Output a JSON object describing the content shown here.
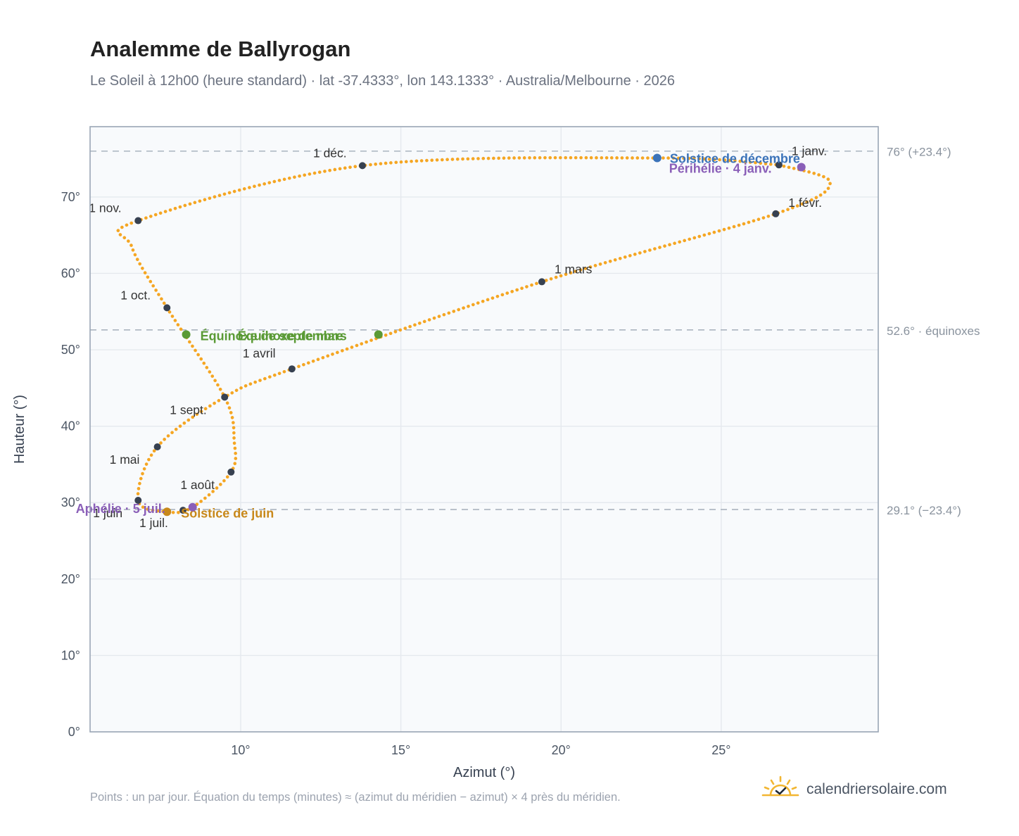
{
  "title": "Analemme de Ballyrogan",
  "subtitle": "Le Soleil à 12h00 (heure standard) · lat -37.4333°, lon 143.1333° · Australia/Melbourne · 2026",
  "footnote": "Points : un par jour. Équation du temps (minutes) ≈ (azimut du méridien − azimut) × 4 près du méridien.",
  "brand": {
    "name": "calendriersolaire.com",
    "icon": "sun-icon"
  },
  "colors": {
    "curve": "#f5a623",
    "month_marker": "#374151",
    "solstice_dec": "#3b73b9",
    "solstice_jun": "#c8881a",
    "equinox": "#5a9a35",
    "apsis": "#8a5fb8",
    "plot_bg": "#f8fafc",
    "grid": "#e5e9ee",
    "frame": "#9aa6b5"
  },
  "chart_data": {
    "type": "scatter",
    "xlabel": "Azimut (°)",
    "ylabel": "Hauteur (°)",
    "xlim": [
      5.3,
      29.9
    ],
    "ylim": [
      0,
      79.2
    ],
    "xticks": [
      {
        "value": 10,
        "label": "10°"
      },
      {
        "value": 15,
        "label": "15°"
      },
      {
        "value": 20,
        "label": "20°"
      },
      {
        "value": 25,
        "label": "25°"
      }
    ],
    "yticks": [
      {
        "value": 0,
        "label": "0°"
      },
      {
        "value": 10,
        "label": "10°"
      },
      {
        "value": 20,
        "label": "20°"
      },
      {
        "value": 30,
        "label": "30°"
      },
      {
        "value": 40,
        "label": "40°"
      },
      {
        "value": 50,
        "label": "50°"
      },
      {
        "value": 60,
        "label": "60°"
      },
      {
        "value": 70,
        "label": "70°"
      }
    ],
    "grid": true,
    "reference_lines": [
      {
        "value": 76.0,
        "label": "76° (+23.4°)"
      },
      {
        "value": 52.6,
        "label": "52.6° · équinoxes"
      },
      {
        "value": 29.1,
        "label": "29.1° (−23.4°)"
      }
    ],
    "analemma_path": [
      {
        "x": 26.8,
        "y": 74.2
      },
      {
        "x": 28.4,
        "y": 71.9
      },
      {
        "x": 26.7,
        "y": 67.8
      },
      {
        "x": 19.4,
        "y": 58.9
      },
      {
        "x": 11.6,
        "y": 47.5
      },
      {
        "x": 9.5,
        "y": 43.8
      },
      {
        "x": 7.4,
        "y": 37.3
      },
      {
        "x": 6.8,
        "y": 30.3
      },
      {
        "x": 7.7,
        "y": 28.8
      },
      {
        "x": 8.5,
        "y": 29.4
      },
      {
        "x": 9.7,
        "y": 34.0
      },
      {
        "x": 9.8,
        "y": 38.0
      },
      {
        "x": 9.5,
        "y": 43.8
      },
      {
        "x": 7.7,
        "y": 55.5
      },
      {
        "x": 6.6,
        "y": 63.5
      },
      {
        "x": 6.8,
        "y": 66.9
      },
      {
        "x": 13.8,
        "y": 74.1
      },
      {
        "x": 23.0,
        "y": 75.1
      },
      {
        "x": 26.8,
        "y": 74.2
      }
    ],
    "month_markers": [
      {
        "label": "1 janv.",
        "x": 26.8,
        "y": 74.2
      },
      {
        "label": "1 févr.",
        "x": 26.7,
        "y": 67.8
      },
      {
        "label": "1 mars",
        "x": 19.4,
        "y": 58.9
      },
      {
        "label": "1 avril",
        "x": 11.6,
        "y": 47.5
      },
      {
        "label": "1 mai",
        "x": 7.4,
        "y": 37.3
      },
      {
        "label": "1 juin",
        "x": 6.8,
        "y": 30.3
      },
      {
        "label": "1 juil.",
        "x": 8.2,
        "y": 29.0
      },
      {
        "label": "1 août",
        "x": 9.7,
        "y": 34.0
      },
      {
        "label": "1 sept.",
        "x": 9.5,
        "y": 43.8
      },
      {
        "label": "1 oct.",
        "x": 7.7,
        "y": 55.5
      },
      {
        "label": "1 nov.",
        "x": 6.8,
        "y": 66.9
      },
      {
        "label": "1 déc.",
        "x": 13.8,
        "y": 74.1
      }
    ],
    "events": [
      {
        "label": "Solstice de décembre",
        "x": 23.0,
        "y": 75.1,
        "kind": "solstice_dec"
      },
      {
        "label": "Périhélie · 4 janv.",
        "x": 27.5,
        "y": 73.9,
        "kind": "apsis"
      },
      {
        "label": "Équinoxe de mars",
        "x": 14.3,
        "y": 52.0,
        "kind": "equinox"
      },
      {
        "label": "Équinoxe de septembre",
        "x": 8.3,
        "y": 52.0,
        "kind": "equinox"
      },
      {
        "label": "Solstice de juin",
        "x": 7.7,
        "y": 28.8,
        "kind": "solstice_jun"
      },
      {
        "label": "Aphélie · 5 juil.",
        "x": 8.5,
        "y": 29.4,
        "kind": "apsis"
      }
    ]
  }
}
